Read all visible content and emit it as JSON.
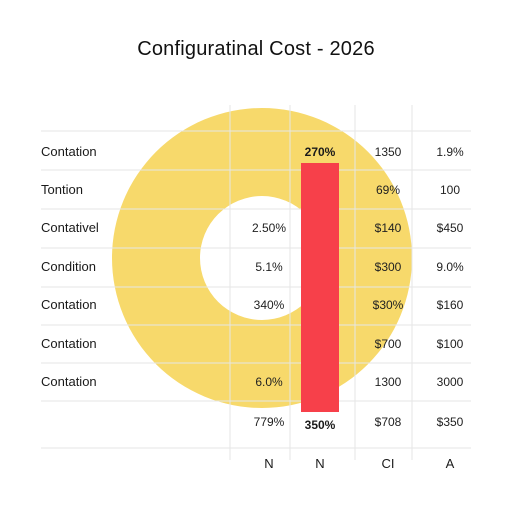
{
  "title": "Configuratinal Cost - 2026",
  "colors": {
    "ring": "#F7D96B",
    "bar": "#F7404A",
    "grid": "#E6E6E6",
    "background": "#FFFFFF"
  },
  "chart_data": {
    "type": "table",
    "title": "Configuratinal Cost - 2026",
    "ring": {
      "type": "pie",
      "style": "donut",
      "fill_color": "#F7D96B"
    },
    "bar": {
      "type": "bar",
      "top_label": "270%",
      "bottom_label": "350%",
      "color": "#F7404A"
    },
    "columns": [
      "N",
      "N",
      "CI",
      "A"
    ],
    "rows": [
      {
        "label": "Contation",
        "cells": [
          "",
          "",
          "1350",
          "1.9%"
        ]
      },
      {
        "label": "Tontion",
        "cells": [
          "",
          "",
          "69%",
          "100"
        ]
      },
      {
        "label": "Contativel",
        "cells": [
          "2.50%",
          "",
          "$140",
          "$450"
        ]
      },
      {
        "label": "Condition",
        "cells": [
          "5.1%",
          "",
          "$300",
          "9.0%"
        ]
      },
      {
        "label": "Contation",
        "cells": [
          "340%",
          "",
          "$30%",
          "$160"
        ]
      },
      {
        "label": "Contation",
        "cells": [
          "",
          "",
          "$700",
          "$100"
        ]
      },
      {
        "label": "Contation",
        "cells": [
          "6.0%",
          "",
          "1300",
          "3000"
        ]
      },
      {
        "label": "",
        "cells": [
          "779%",
          "",
          "$708",
          "$350"
        ]
      }
    ]
  }
}
